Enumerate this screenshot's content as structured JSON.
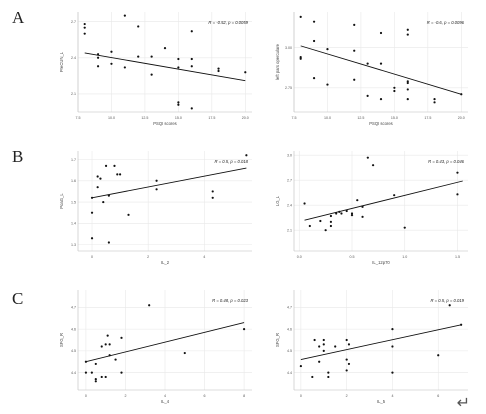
{
  "labels": {
    "row_a": "A",
    "row_b": "B",
    "row_c": "C",
    "return_mark": "↵"
  },
  "chart_data": [
    {
      "type": "scatter",
      "ylabel": "PreCUN_L",
      "xlabel": "PSQI scores",
      "annotation": "R = -0.52, p = 0.0059",
      "xlim": [
        7.5,
        20.5
      ],
      "ylim": [
        1.95,
        2.78
      ],
      "xticks": [
        7.5,
        10.0,
        12.5,
        15.0,
        17.5,
        20.0
      ],
      "xtick_labels": [
        "7.5",
        "10.0",
        "12.5",
        "15.0",
        "17.5",
        "20.0"
      ],
      "yticks": [
        2.1,
        2.4,
        2.7
      ],
      "ytick_labels": [
        "2.1",
        "2.4",
        "2.7"
      ],
      "grid": true,
      "trend": [
        [
          8,
          2.44
        ],
        [
          20,
          2.21
        ]
      ],
      "points": [
        [
          8,
          2.68
        ],
        [
          8,
          2.65
        ],
        [
          8,
          2.6
        ],
        [
          9,
          2.43
        ],
        [
          9,
          2.4
        ],
        [
          9,
          2.33
        ],
        [
          10,
          2.45
        ],
        [
          10,
          2.35
        ],
        [
          11,
          2.75
        ],
        [
          11,
          2.32
        ],
        [
          12,
          2.66
        ],
        [
          12,
          2.41
        ],
        [
          13,
          2.41
        ],
        [
          13,
          2.26
        ],
        [
          14,
          2.48
        ],
        [
          15,
          2.39
        ],
        [
          15,
          2.32
        ],
        [
          15,
          2.03
        ],
        [
          15,
          2.01
        ],
        [
          16,
          2.62
        ],
        [
          16,
          2.39
        ],
        [
          16,
          2.33
        ],
        [
          16,
          1.98
        ],
        [
          18,
          2.31
        ],
        [
          18,
          2.29
        ],
        [
          20,
          2.28
        ]
      ]
    },
    {
      "type": "scatter",
      "ylabel": "left pars operculare",
      "xlabel": "PSQI scores",
      "annotation": "R = -0.6, p = 0.0096",
      "xlim": [
        7.5,
        20.5
      ],
      "ylim": [
        2.6,
        3.22
      ],
      "xticks": [
        7.5,
        10.0,
        12.5,
        15.0,
        17.5,
        20.0
      ],
      "xtick_labels": [
        "7.5",
        "10.0",
        "12.5",
        "15.0",
        "17.5",
        "20.0"
      ],
      "yticks": [
        2.75,
        3.0
      ],
      "ytick_labels": [
        "2.75",
        "3.00"
      ],
      "grid": true,
      "trend": [
        [
          8,
          3.01
        ],
        [
          20,
          2.71
        ]
      ],
      "points": [
        [
          8,
          3.19
        ],
        [
          8,
          2.94
        ],
        [
          8,
          2.93
        ],
        [
          9,
          3.16
        ],
        [
          9,
          3.04
        ],
        [
          9,
          2.81
        ],
        [
          10,
          2.99
        ],
        [
          10,
          2.77
        ],
        [
          12,
          3.14
        ],
        [
          12,
          2.98
        ],
        [
          12,
          2.8
        ],
        [
          13,
          2.7
        ],
        [
          13,
          2.9
        ],
        [
          14,
          3.09
        ],
        [
          14,
          2.9
        ],
        [
          14,
          2.68
        ],
        [
          15,
          2.75
        ],
        [
          15,
          2.73
        ],
        [
          16,
          3.11
        ],
        [
          16,
          3.08
        ],
        [
          16,
          2.79
        ],
        [
          16,
          2.78
        ],
        [
          16,
          2.74
        ],
        [
          16,
          2.68
        ],
        [
          18,
          2.68
        ],
        [
          18,
          2.66
        ],
        [
          20,
          2.71
        ]
      ]
    },
    {
      "type": "scatter",
      "ylabel": "PoaG_L",
      "xlabel": "IL_2",
      "annotation": "R = 0.5, p = 0.018",
      "xlim": [
        -0.5,
        5.7
      ],
      "ylim": [
        1.27,
        1.74
      ],
      "xticks": [
        0,
        2,
        4
      ],
      "xtick_labels": [
        "0",
        "2",
        "4"
      ],
      "yticks": [
        1.3,
        1.4,
        1.5,
        1.6,
        1.7
      ],
      "ytick_labels": [
        "1.3",
        "1.4",
        "1.5",
        "1.6",
        "1.7"
      ],
      "grid": true,
      "trend": [
        [
          0,
          1.52
        ],
        [
          5.5,
          1.66
        ]
      ],
      "points": [
        [
          0,
          1.52
        ],
        [
          0,
          1.45
        ],
        [
          0,
          1.33
        ],
        [
          0.2,
          1.62
        ],
        [
          0.2,
          1.57
        ],
        [
          0.3,
          1.61
        ],
        [
          0.4,
          1.5
        ],
        [
          0.5,
          1.67
        ],
        [
          0.6,
          1.53
        ],
        [
          0.6,
          1.31
        ],
        [
          0.8,
          1.67
        ],
        [
          0.9,
          1.63
        ],
        [
          1.0,
          1.63
        ],
        [
          1.3,
          1.44
        ],
        [
          2.3,
          1.6
        ],
        [
          2.3,
          1.56
        ],
        [
          4.3,
          1.55
        ],
        [
          4.3,
          1.52
        ],
        [
          5.5,
          1.72
        ]
      ]
    },
    {
      "type": "scatter",
      "ylabel": "LG_L",
      "xlabel": "IL_12p70",
      "annotation": "R = 0.43, p = 0.046",
      "xlim": [
        -0.05,
        1.6
      ],
      "ylim": [
        1.85,
        3.05
      ],
      "xticks": [
        0.0,
        0.5,
        1.0,
        1.5
      ],
      "xtick_labels": [
        "0.0",
        "0.5",
        "1.0",
        "1.5"
      ],
      "yticks": [
        2.1,
        2.4,
        2.7,
        3.0
      ],
      "ytick_labels": [
        "2.1",
        "2.4",
        "2.7",
        "3.0"
      ],
      "grid": true,
      "trend": [
        [
          0.05,
          2.22
        ],
        [
          1.55,
          2.69
        ]
      ],
      "points": [
        [
          0.05,
          2.42
        ],
        [
          0.1,
          2.15
        ],
        [
          0.2,
          2.21
        ],
        [
          0.25,
          2.1
        ],
        [
          0.3,
          2.15
        ],
        [
          0.3,
          2.27
        ],
        [
          0.3,
          2.2
        ],
        [
          0.35,
          2.3
        ],
        [
          0.38,
          2.32
        ],
        [
          0.4,
          2.3
        ],
        [
          0.45,
          2.33
        ],
        [
          0.5,
          2.3
        ],
        [
          0.5,
          2.28
        ],
        [
          0.55,
          2.46
        ],
        [
          0.6,
          2.38
        ],
        [
          0.6,
          2.26
        ],
        [
          0.65,
          2.97
        ],
        [
          0.7,
          2.88
        ],
        [
          0.9,
          2.52
        ],
        [
          1.0,
          2.13
        ],
        [
          1.5,
          2.79
        ],
        [
          1.5,
          2.53
        ]
      ]
    },
    {
      "type": "scatter",
      "ylabel": "SFG_R",
      "xlabel": "IL_4",
      "annotation": "R = 0.48, p = 0.023",
      "xlim": [
        -0.4,
        8.4
      ],
      "ylim": [
        4.32,
        4.78
      ],
      "xticks": [
        0,
        2,
        4,
        6,
        8
      ],
      "xtick_labels": [
        "0",
        "2",
        "4",
        "6",
        "8"
      ],
      "yticks": [
        4.4,
        4.5,
        4.6,
        4.7
      ],
      "ytick_labels": [
        "4.4",
        "4.5",
        "4.6",
        "4.7"
      ],
      "grid": true,
      "trend": [
        [
          0,
          4.45
        ],
        [
          8,
          4.63
        ]
      ],
      "points": [
        [
          0,
          4.4
        ],
        [
          0,
          4.45
        ],
        [
          0.3,
          4.4
        ],
        [
          0.5,
          4.44
        ],
        [
          0.5,
          4.37
        ],
        [
          0.5,
          4.36
        ],
        [
          0.8,
          4.52
        ],
        [
          0.8,
          4.38
        ],
        [
          1.0,
          4.53
        ],
        [
          1.0,
          4.38
        ],
        [
          1.1,
          4.57
        ],
        [
          1.2,
          4.48
        ],
        [
          1.2,
          4.53
        ],
        [
          1.5,
          4.46
        ],
        [
          1.8,
          4.56
        ],
        [
          1.8,
          4.4
        ],
        [
          3.2,
          4.71
        ],
        [
          5.0,
          4.49
        ],
        [
          8.0,
          4.6
        ]
      ]
    },
    {
      "type": "scatter",
      "ylabel": "SFG_R",
      "xlabel": "IL_5",
      "annotation": "R = 0.5, p = 0.019",
      "xlim": [
        -0.3,
        7.3
      ],
      "ylim": [
        4.32,
        4.78
      ],
      "xticks": [
        0,
        2,
        4,
        6
      ],
      "xtick_labels": [
        "0",
        "2",
        "4",
        "6"
      ],
      "yticks": [
        4.4,
        4.5,
        4.6,
        4.7
      ],
      "ytick_labels": [
        "4.4",
        "4.5",
        "4.6",
        "4.7"
      ],
      "grid": true,
      "trend": [
        [
          0,
          4.46
        ],
        [
          7,
          4.62
        ]
      ],
      "points": [
        [
          0,
          4.43
        ],
        [
          0.5,
          4.38
        ],
        [
          0.6,
          4.55
        ],
        [
          0.8,
          4.52
        ],
        [
          0.8,
          4.45
        ],
        [
          1.0,
          4.53
        ],
        [
          1.0,
          4.55
        ],
        [
          1.0,
          4.5
        ],
        [
          1.2,
          4.4
        ],
        [
          1.2,
          4.38
        ],
        [
          1.5,
          4.52
        ],
        [
          2.0,
          4.55
        ],
        [
          2.0,
          4.46
        ],
        [
          2.0,
          4.41
        ],
        [
          2.1,
          4.53
        ],
        [
          2.1,
          4.44
        ],
        [
          4.0,
          4.6
        ],
        [
          4.0,
          4.52
        ],
        [
          4.0,
          4.4
        ],
        [
          6.0,
          4.48
        ],
        [
          6.5,
          4.71
        ],
        [
          7.0,
          4.62
        ]
      ]
    }
  ]
}
